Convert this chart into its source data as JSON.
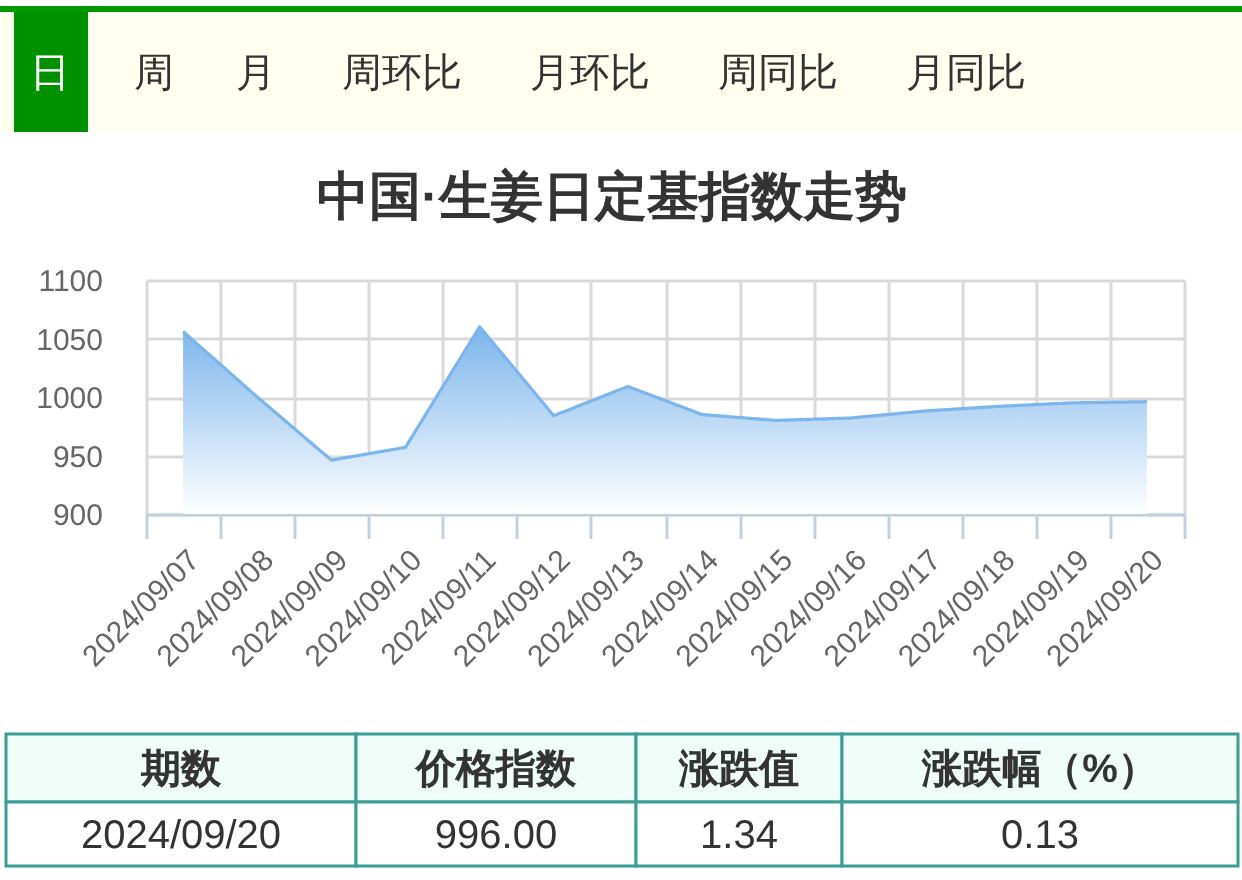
{
  "chart_data": {
    "type": "area",
    "title": "中国·生姜日定基指数走势",
    "categories": [
      "2024/09/07",
      "2024/09/08",
      "2024/09/09",
      "2024/09/10",
      "2024/09/11",
      "2024/09/12",
      "2024/09/13",
      "2024/09/14",
      "2024/09/15",
      "2024/09/16",
      "2024/09/17",
      "2024/09/18",
      "2024/09/19",
      "2024/09/20"
    ],
    "series": [
      {
        "color": "#7cb5ec",
        "values": [
          1056,
          1000,
          946,
          957,
          1060,
          984,
          1009,
          985,
          980,
          982,
          988,
          992,
          995,
          996
        ]
      }
    ],
    "ylim": [
      900,
      1100
    ],
    "yticks": [
      900,
      950,
      1000,
      1050,
      1100
    ],
    "grid": true,
    "annotations": [
      "日",
      "周",
      "月",
      "周环比",
      "月环比",
      "周同比",
      "月同比",
      "期数",
      "价格指数",
      "涨跌值",
      "涨跌幅（%）",
      "2024/09/20",
      "996.00",
      "1.34",
      "0.13"
    ]
  }
}
